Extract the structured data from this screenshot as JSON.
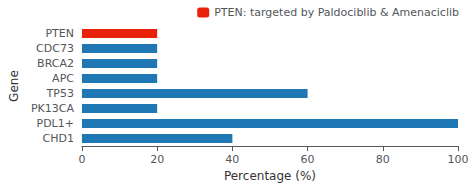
{
  "chart_data": {
    "type": "bar",
    "orientation": "horizontal",
    "categories": [
      "PTEN",
      "CDC73",
      "BRCA2",
      "APC",
      "TP53",
      "PK13CA",
      "PDL1+",
      "CHD1"
    ],
    "series": [
      {
        "name": "PTEN: targeted by Paldociblib & Amenaciclib",
        "color": "#e8210a",
        "colors": [
          "#e8210a",
          "#1f77b4",
          "#1f77b4",
          "#1f77b4",
          "#1f77b4",
          "#1f77b4",
          "#1f77b4",
          "#1f77b4"
        ],
        "values": [
          20,
          20,
          20,
          20,
          60,
          20,
          100,
          40
        ]
      }
    ],
    "xlabel": "Percentage (%)",
    "ylabel": "Gene",
    "xlim": [
      0,
      100
    ],
    "xticks": [
      0,
      20,
      40,
      60,
      80,
      100
    ],
    "grid": false,
    "legend": "upper right"
  }
}
